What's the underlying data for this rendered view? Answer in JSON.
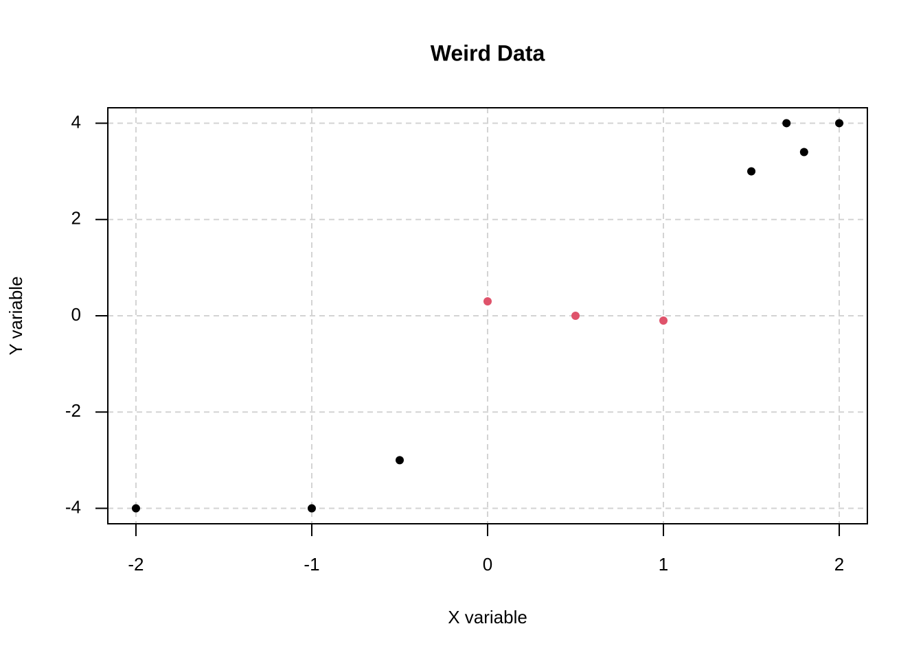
{
  "chart_data": {
    "type": "scatter",
    "title": "Weird Data",
    "x_label": "X variable",
    "y_label": "Y variable",
    "series": [
      {
        "color": "#000000",
        "x": [
          -2,
          -1,
          -0.5,
          1.5,
          1.7,
          1.8,
          2
        ],
        "values": [
          -4,
          -4,
          -3,
          3,
          4,
          3.4,
          4
        ]
      },
      {
        "color": "#df536b",
        "x": [
          0,
          0.5,
          1
        ],
        "values": [
          0.3,
          0,
          -0.1
        ]
      }
    ],
    "xlim": [
      -2.16,
      2.16
    ],
    "ylim": [
      -4.32,
      4.32
    ],
    "xticks": [
      -2,
      -1,
      0,
      1,
      2
    ],
    "yticks": [
      -4,
      -2,
      0,
      2,
      4
    ],
    "grid": true,
    "grid_color": "#d3d3d3"
  }
}
